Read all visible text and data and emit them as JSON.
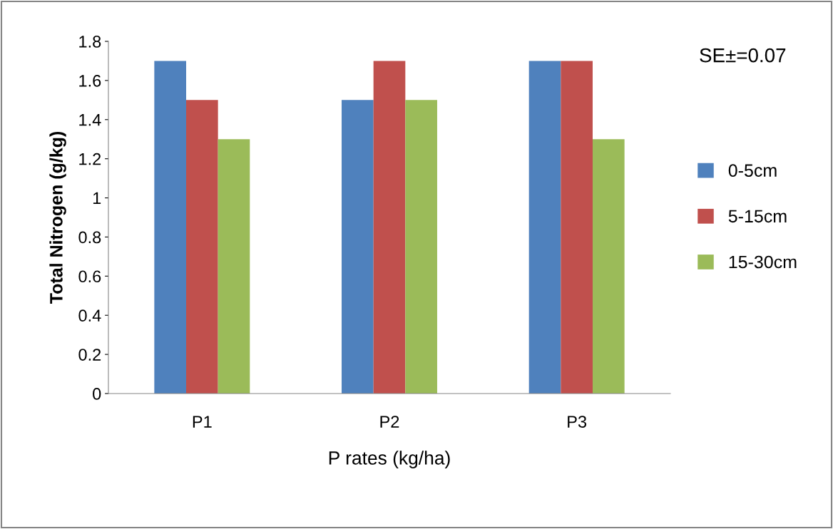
{
  "chart_data": {
    "type": "bar",
    "xlabel": "P rates (kg/ha)",
    "ylabel": "Total Nitrogen (g/kg)",
    "categories": [
      "P1",
      "P2",
      "P3"
    ],
    "series": [
      {
        "name": "0-5cm",
        "color": "#4f81bd",
        "values": [
          1.7,
          1.5,
          1.7
        ]
      },
      {
        "name": "5-15cm",
        "color": "#c0504d",
        "values": [
          1.5,
          1.7,
          1.7
        ]
      },
      {
        "name": "15-30cm",
        "color": "#9bbb59",
        "values": [
          1.3,
          1.5,
          1.3
        ]
      }
    ],
    "ylim": [
      0,
      1.8
    ],
    "yticks": [
      0,
      0.2,
      0.4,
      0.6,
      0.8,
      1,
      1.2,
      1.4,
      1.6,
      1.8
    ],
    "annotations": [
      "SE±=0.07"
    ],
    "grid": false,
    "legend": "right"
  }
}
